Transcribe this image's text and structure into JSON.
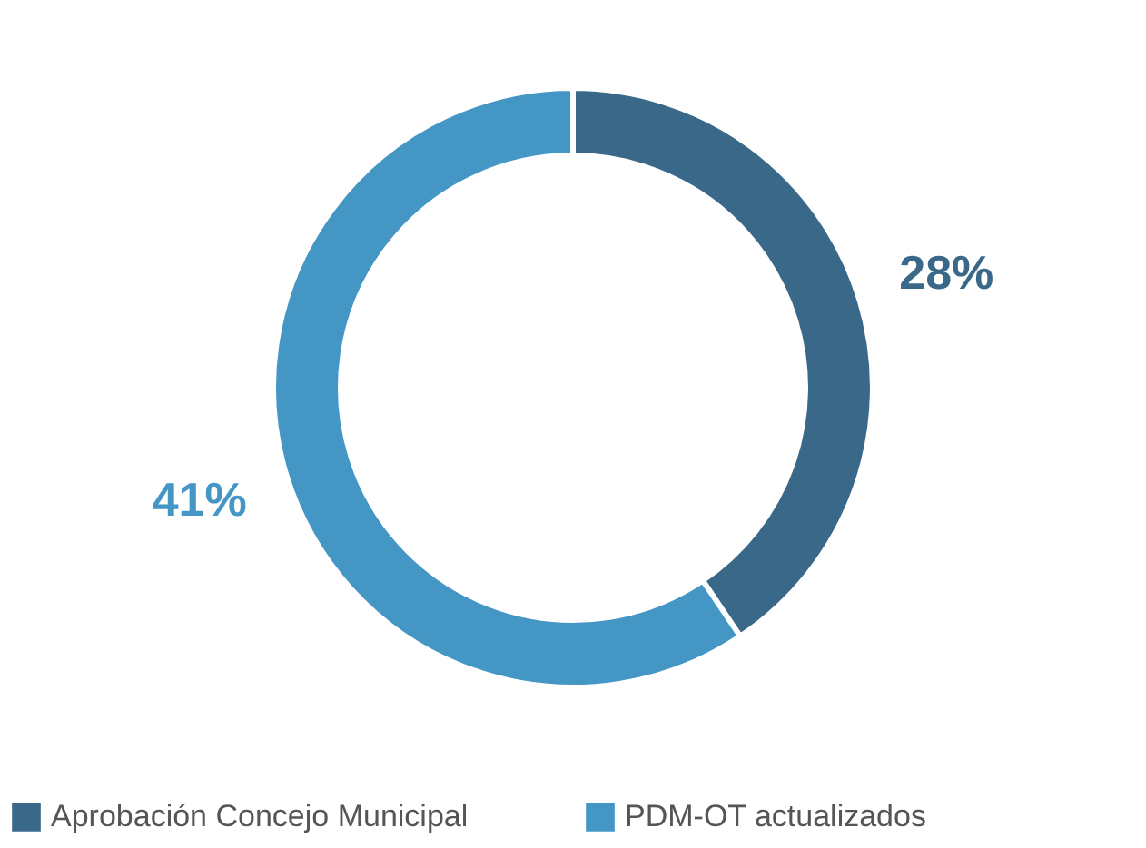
{
  "chart_data": {
    "type": "donut",
    "categories": [
      "Aprobación Concejo Municipal",
      "PDM-OT actualizados"
    ],
    "values": [
      28,
      41
    ],
    "colors": [
      "#3a6888",
      "#4496c5"
    ],
    "value_labels": [
      "28%",
      "41%"
    ],
    "legend": "bottom"
  }
}
